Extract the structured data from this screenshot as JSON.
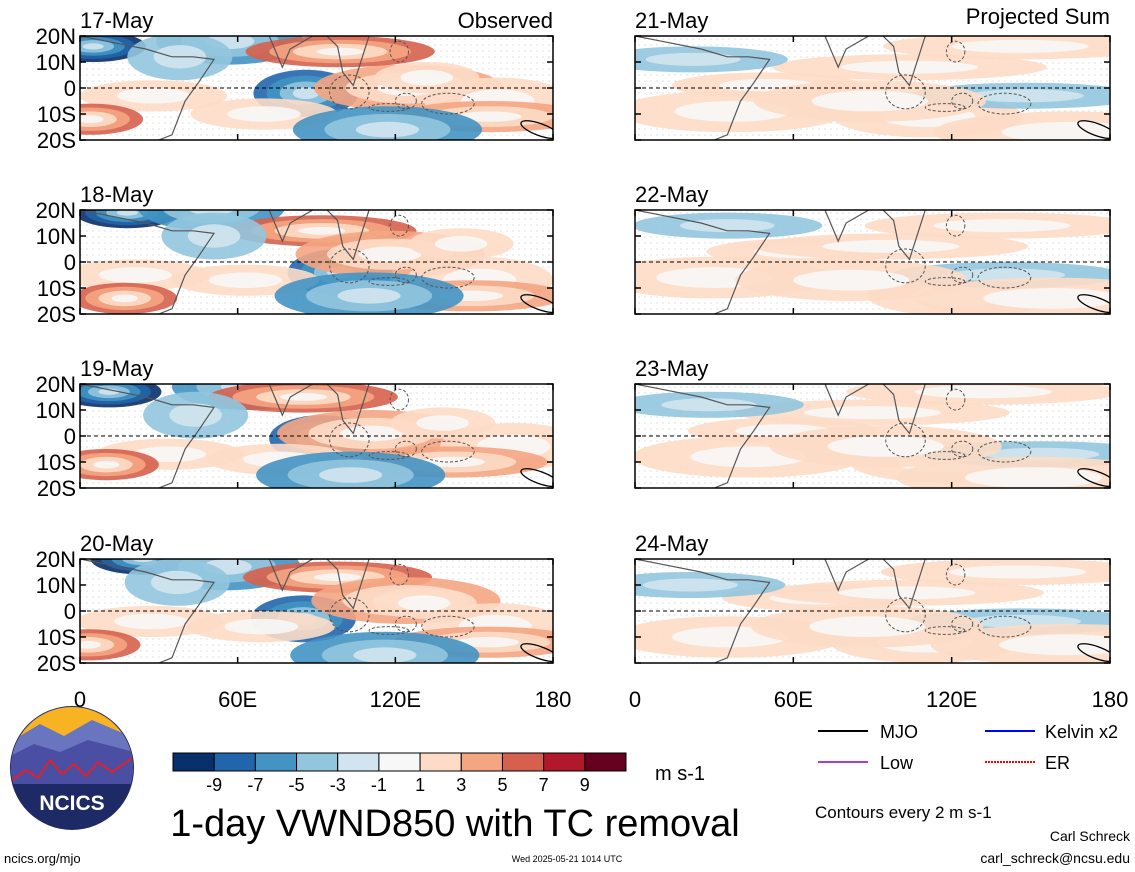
{
  "chart_data": {
    "type": "heatmap",
    "title": "1-day VWND850 with TC removal",
    "units": "m s-1",
    "columns": [
      {
        "header": "Observed",
        "dates": [
          "17-May",
          "18-May",
          "19-May",
          "20-May"
        ]
      },
      {
        "header": "Projected Sum",
        "dates": [
          "21-May",
          "22-May",
          "23-May",
          "24-May"
        ]
      }
    ],
    "xlim": [
      0,
      180
    ],
    "ylim": [
      -20,
      20
    ],
    "x_ticks": [
      "0",
      "60E",
      "120E",
      "180"
    ],
    "y_ticks": [
      "20N",
      "10N",
      "0",
      "10S",
      "20S"
    ],
    "colorbar": {
      "labels": [
        "-9",
        "-7",
        "-5",
        "-3",
        "-1",
        "1",
        "3",
        "5",
        "7",
        "9"
      ],
      "colors": [
        "#08306b",
        "#2166ac",
        "#4393c3",
        "#92c5de",
        "#d1e5f0",
        "#f7f7f7",
        "#fddbc7",
        "#f4a582",
        "#d6604d",
        "#b2182b",
        "#67001f"
      ]
    },
    "legend": {
      "placement": "bottom-right",
      "items": [
        {
          "label": "MJO",
          "color": "#000000"
        },
        {
          "label": "Kelvin x2",
          "color": "#0000ff"
        },
        {
          "label": "Low",
          "color": "#a040e0"
        },
        {
          "label": "ER",
          "color": "#ff0000"
        }
      ]
    },
    "contour_note": "Contours every 2 m s-1",
    "grid": false
  },
  "footer": {
    "left": "ncics.org/mjo",
    "center": "Wed 2025-05-21 1014 UTC",
    "author": "Carl Schreck",
    "email": "carl_schreck@ncsu.edu"
  },
  "logo": {
    "text": "NCICS",
    "colors": {
      "sky": "#f7b321",
      "mountains": "#4a4fa3",
      "ring": "#1e2a66",
      "line": "#e0202a"
    }
  }
}
